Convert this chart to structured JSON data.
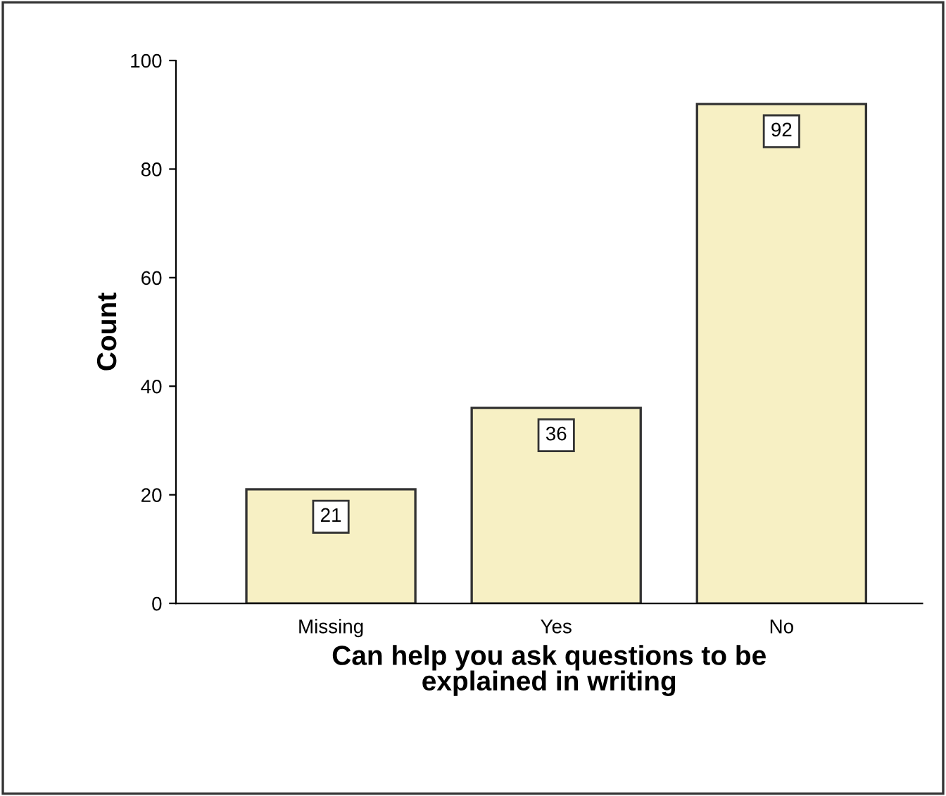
{
  "chart_data": {
    "type": "bar",
    "xlabel": "Can help you ask questions to be\nexplained in writing",
    "ylabel": "Count",
    "categories": [
      "Missing",
      "Yes",
      "No"
    ],
    "values": [
      21,
      36,
      92
    ],
    "color": "#f7f0c4",
    "ylim": [
      0,
      100
    ],
    "yticks": [
      0,
      20,
      40,
      60,
      80,
      100
    ],
    "grid": false,
    "data_labels": true
  }
}
